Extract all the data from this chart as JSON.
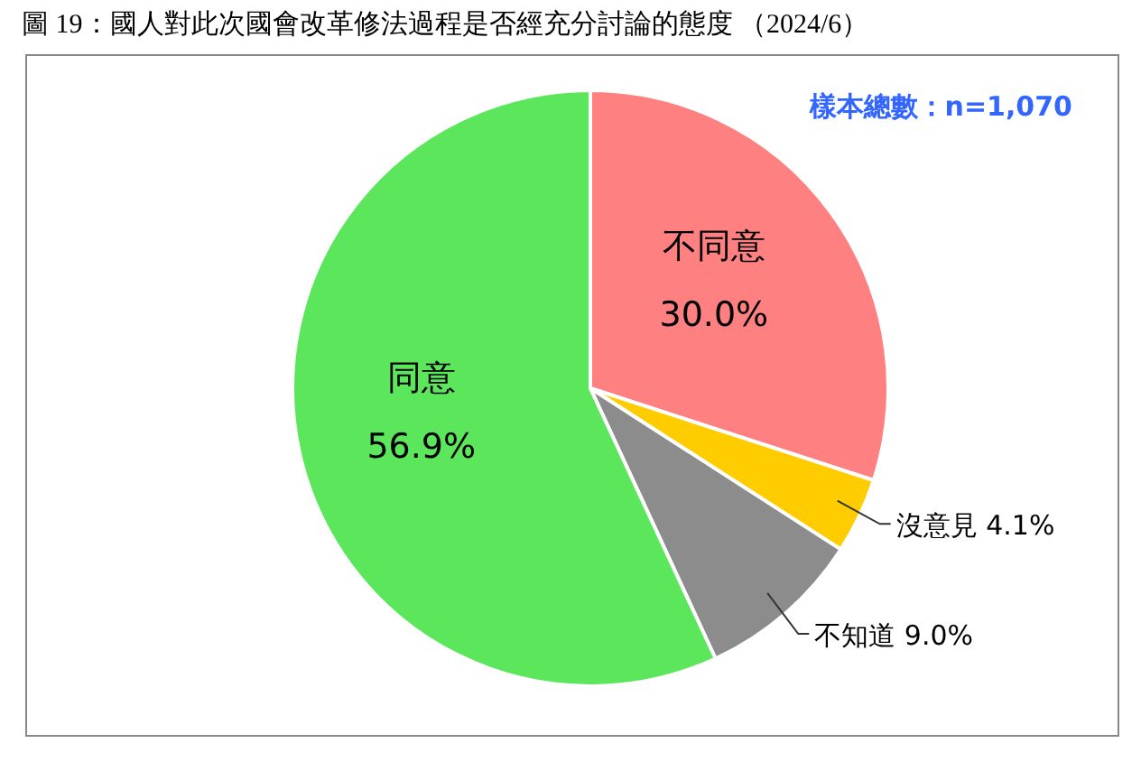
{
  "chart_data": {
    "type": "pie",
    "title": "圖 19：國人對此次國會改革修法過程是否經充分討論的態度 （2024/6）",
    "annotations": [
      "樣本總數：n=1,070"
    ],
    "categories": [
      "不同意",
      "沒意見",
      "不知道",
      "同意"
    ],
    "values": [
      30.0,
      4.1,
      9.0,
      56.9
    ],
    "value_labels": [
      "30.0%",
      "4.1%",
      "9.0%",
      "56.9%"
    ],
    "colors": [
      "#ff8080",
      "#ffcc00",
      "#8c8c8c",
      "#5ce65c"
    ],
    "legend": false
  }
}
